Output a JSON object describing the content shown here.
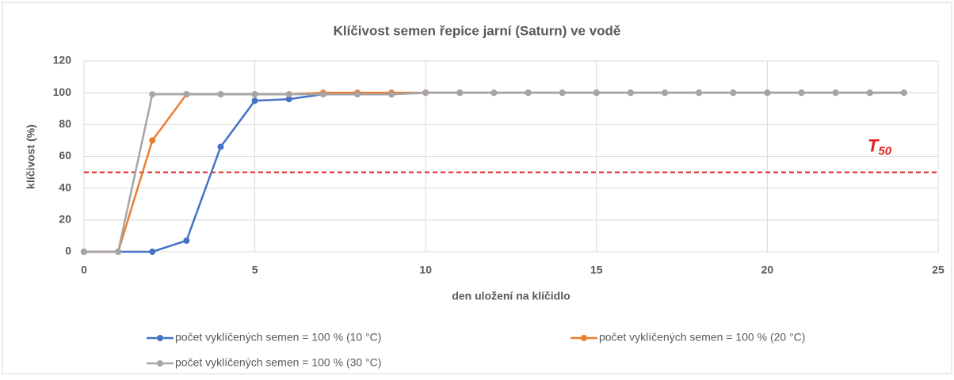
{
  "chart_data": {
    "type": "line",
    "title": "Klíčivost semen řepice jarní (Saturn) ve vodě",
    "x_label": "den uložení na klíčidlo",
    "y_label": "klíčivost (%)",
    "x": [
      0,
      1,
      2,
      3,
      4,
      5,
      6,
      7,
      8,
      9,
      10,
      11,
      12,
      13,
      14,
      15,
      16,
      17,
      18,
      19,
      20,
      21,
      22,
      23,
      24
    ],
    "series": [
      {
        "name": "počet vyklíčených semen = 100 % (10 °C)",
        "color": "#4472c4",
        "values": [
          0,
          0,
          0,
          7,
          66,
          95,
          96,
          99,
          99,
          99,
          100,
          100,
          100,
          100,
          100,
          100,
          100,
          100,
          100,
          100,
          100,
          100,
          100,
          100,
          100
        ]
      },
      {
        "name": "počet vyklíčených semen = 100 % (20 °C)",
        "color": "#ed7d31",
        "values": [
          0,
          0,
          70,
          99,
          99,
          99,
          99,
          100,
          100,
          100,
          100,
          100,
          100,
          100,
          100,
          100,
          100,
          100,
          100,
          100,
          100,
          100,
          100,
          100,
          100
        ]
      },
      {
        "name": "počet vyklíčených semen = 100 % (30 °C)",
        "color": "#a5a5a5",
        "values": [
          0,
          0,
          99,
          99,
          99,
          99,
          99,
          99,
          99,
          99,
          100,
          100,
          100,
          100,
          100,
          100,
          100,
          100,
          100,
          100,
          100,
          100,
          100,
          100,
          100
        ]
      }
    ],
    "threshold": {
      "value": 50,
      "label": "T",
      "subscript": "50",
      "color": "#e02020"
    },
    "xlim": [
      0,
      25
    ],
    "xticks": [
      0,
      5,
      10,
      15,
      20,
      25
    ],
    "ylim": [
      0,
      120
    ],
    "yticks": [
      0,
      20,
      40,
      60,
      80,
      100,
      120
    ],
    "grid": true,
    "legend": "bottom"
  }
}
